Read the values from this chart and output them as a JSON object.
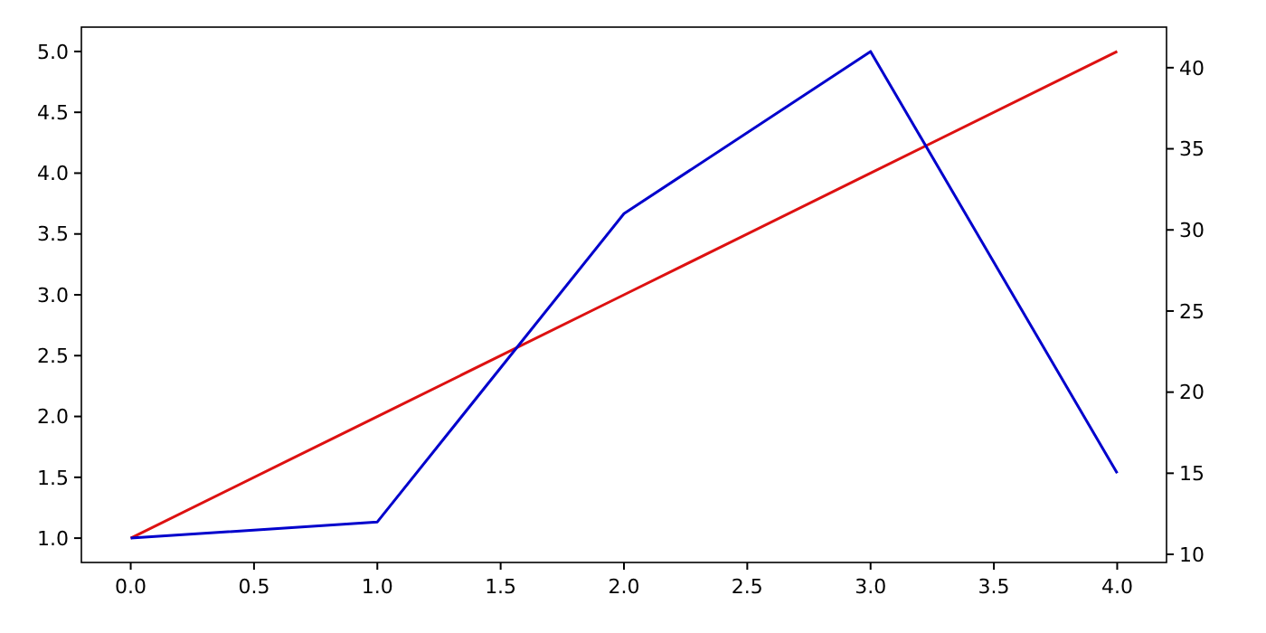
{
  "chart_data": {
    "type": "line",
    "x": [
      0,
      1,
      2,
      3,
      4
    ],
    "series": [
      {
        "color": "#dd1111",
        "values": [
          1,
          2,
          3,
          4,
          5
        ]
      },
      {
        "color": "#0000cc",
        "values": [
          11,
          12,
          31,
          41,
          15
        ],
        "axis": "y2"
      }
    ],
    "xlim": [
      -0.2,
      4.2
    ],
    "xticks": [
      {
        "value": 0,
        "label": "0.0"
      },
      {
        "value": 0.5,
        "label": "0.5"
      },
      {
        "value": 1,
        "label": "1.0"
      },
      {
        "value": 1.5,
        "label": "1.5"
      },
      {
        "value": 2,
        "label": "2.0"
      },
      {
        "value": 2.5,
        "label": "2.5"
      },
      {
        "value": 3,
        "label": "3.0"
      },
      {
        "value": 3.5,
        "label": "3.5"
      },
      {
        "value": 4,
        "label": "4.0"
      }
    ],
    "ylim": [
      0.8,
      5.2
    ],
    "yticks": [
      {
        "value": 1,
        "label": "1.0"
      },
      {
        "value": 1.5,
        "label": "1.5"
      },
      {
        "value": 2,
        "label": "2.0"
      },
      {
        "value": 2.5,
        "label": "2.5"
      },
      {
        "value": 3,
        "label": "3.0"
      },
      {
        "value": 3.5,
        "label": "3.5"
      },
      {
        "value": 4,
        "label": "4.0"
      },
      {
        "value": 4.5,
        "label": "4.5"
      },
      {
        "value": 5,
        "label": "5.0"
      }
    ],
    "y2lim": [
      9.5,
      42.5
    ],
    "y2ticks": [
      10,
      15,
      20,
      25,
      30,
      35,
      40
    ],
    "grid": false
  }
}
